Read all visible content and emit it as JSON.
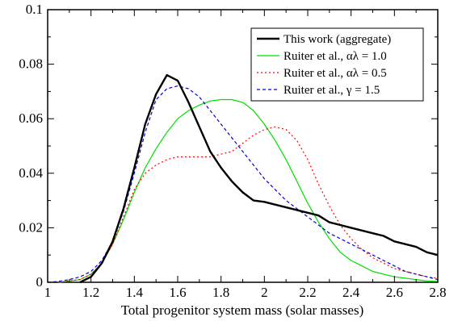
{
  "chart_data": {
    "type": "line",
    "title": "",
    "xlabel": "Total progenitor system mass (solar masses)",
    "ylabel": "",
    "xlim": [
      1,
      2.8
    ],
    "ylim": [
      0,
      0.1
    ],
    "x_ticks": [
      "1",
      "1.2",
      "1.4",
      "1.6",
      "1.8",
      "2",
      "2.2",
      "2.4",
      "2.6",
      "2.8"
    ],
    "y_ticks": [
      "0",
      "0.02",
      "0.04",
      "0.06",
      "0.08",
      "0.1"
    ],
    "x_tick_values": [
      1,
      1.2,
      1.4,
      1.6,
      1.8,
      2,
      2.2,
      2.4,
      2.6,
      2.8
    ],
    "y_tick_values": [
      0,
      0.02,
      0.04,
      0.06,
      0.08,
      0.1
    ],
    "grid": false,
    "legend_position": "top-right",
    "series": [
      {
        "name": "This work (aggregate)",
        "color": "#000000",
        "dash": "solid",
        "x": [
          1.15,
          1.2,
          1.25,
          1.3,
          1.35,
          1.4,
          1.45,
          1.5,
          1.55,
          1.6,
          1.65,
          1.7,
          1.75,
          1.8,
          1.85,
          1.9,
          1.95,
          2.0,
          2.05,
          2.1,
          2.15,
          2.2,
          2.25,
          2.3,
          2.35,
          2.4,
          2.45,
          2.5,
          2.55,
          2.6,
          2.65,
          2.7,
          2.75,
          2.8
        ],
        "y": [
          0.0,
          0.002,
          0.007,
          0.015,
          0.027,
          0.042,
          0.058,
          0.069,
          0.076,
          0.074,
          0.066,
          0.057,
          0.048,
          0.042,
          0.037,
          0.033,
          0.03,
          0.0295,
          0.0285,
          0.0275,
          0.0265,
          0.0255,
          0.0245,
          0.022,
          0.021,
          0.02,
          0.019,
          0.018,
          0.017,
          0.015,
          0.014,
          0.013,
          0.011,
          0.01
        ]
      },
      {
        "name": "Ruiter et al., αλ = 1.0",
        "color": "#00dd00",
        "dash": "solid",
        "x": [
          1.05,
          1.1,
          1.15,
          1.2,
          1.25,
          1.3,
          1.35,
          1.4,
          1.45,
          1.5,
          1.55,
          1.6,
          1.65,
          1.7,
          1.75,
          1.8,
          1.85,
          1.9,
          1.95,
          2.0,
          2.05,
          2.1,
          2.15,
          2.2,
          2.25,
          2.3,
          2.35,
          2.4,
          2.45,
          2.5,
          2.55,
          2.6,
          2.65,
          2.7,
          2.75,
          2.8
        ],
        "y": [
          0.0,
          0.0005,
          0.001,
          0.003,
          0.007,
          0.014,
          0.023,
          0.033,
          0.042,
          0.049,
          0.055,
          0.06,
          0.063,
          0.065,
          0.0665,
          0.067,
          0.067,
          0.066,
          0.063,
          0.058,
          0.052,
          0.045,
          0.037,
          0.029,
          0.022,
          0.016,
          0.011,
          0.008,
          0.006,
          0.004,
          0.003,
          0.002,
          0.0015,
          0.001,
          0.0005,
          0.0003
        ]
      },
      {
        "name": "Ruiter et al., αλ = 0.5",
        "color": "#ff0000",
        "dash": "dotted",
        "x": [
          1.05,
          1.1,
          1.15,
          1.2,
          1.25,
          1.3,
          1.35,
          1.4,
          1.45,
          1.5,
          1.55,
          1.6,
          1.65,
          1.7,
          1.75,
          1.8,
          1.85,
          1.9,
          1.95,
          2.0,
          2.05,
          2.1,
          2.15,
          2.2,
          2.25,
          2.3,
          2.35,
          2.4,
          2.45,
          2.5,
          2.55,
          2.6,
          2.65,
          2.7,
          2.75,
          2.8
        ],
        "y": [
          0.0,
          0.0005,
          0.001,
          0.003,
          0.007,
          0.014,
          0.024,
          0.034,
          0.04,
          0.043,
          0.045,
          0.046,
          0.046,
          0.046,
          0.046,
          0.047,
          0.048,
          0.051,
          0.054,
          0.056,
          0.057,
          0.056,
          0.052,
          0.045,
          0.036,
          0.028,
          0.021,
          0.016,
          0.012,
          0.009,
          0.007,
          0.005,
          0.004,
          0.003,
          0.002,
          0.0015
        ]
      },
      {
        "name": "Ruiter et al., γ = 1.5",
        "color": "#0000dd",
        "dash": "dashed",
        "x": [
          1.0,
          1.05,
          1.1,
          1.15,
          1.2,
          1.25,
          1.3,
          1.35,
          1.4,
          1.45,
          1.5,
          1.55,
          1.6,
          1.65,
          1.7,
          1.75,
          1.8,
          1.85,
          1.9,
          1.95,
          2.0,
          2.05,
          2.1,
          2.15,
          2.2,
          2.25,
          2.3,
          2.35,
          2.4,
          2.45,
          2.5,
          2.55,
          2.6,
          2.65,
          2.7,
          2.75,
          2.8
        ],
        "y": [
          0.0,
          0.0003,
          0.001,
          0.002,
          0.004,
          0.008,
          0.015,
          0.026,
          0.04,
          0.055,
          0.067,
          0.071,
          0.072,
          0.071,
          0.068,
          0.063,
          0.058,
          0.053,
          0.048,
          0.043,
          0.038,
          0.034,
          0.03,
          0.027,
          0.024,
          0.021,
          0.018,
          0.016,
          0.014,
          0.012,
          0.01,
          0.008,
          0.006,
          0.004,
          0.003,
          0.002,
          0.001
        ]
      }
    ]
  }
}
